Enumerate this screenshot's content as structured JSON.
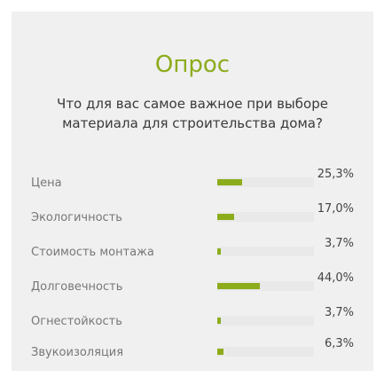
{
  "poll": {
    "title": "Опрос",
    "question": "Что для вас самое важное при выборе материала для строительства дома?",
    "accent_color": "#8cac1c",
    "answers": [
      {
        "label": "Цена",
        "percent_text": "25,3%",
        "percent": 25.3
      },
      {
        "label": "Экологичность",
        "percent_text": "17,0%",
        "percent": 17.0
      },
      {
        "label": "Стоимость монтажа",
        "percent_text": "3,7%",
        "percent": 3.7
      },
      {
        "label": "Долговечность",
        "percent_text": "44,0%",
        "percent": 44.0
      },
      {
        "label": "Огнестойкость",
        "percent_text": "3,7%",
        "percent": 3.7
      },
      {
        "label": "Звукоизоляция",
        "percent_text": "6,3%",
        "percent": 6.3
      }
    ]
  }
}
